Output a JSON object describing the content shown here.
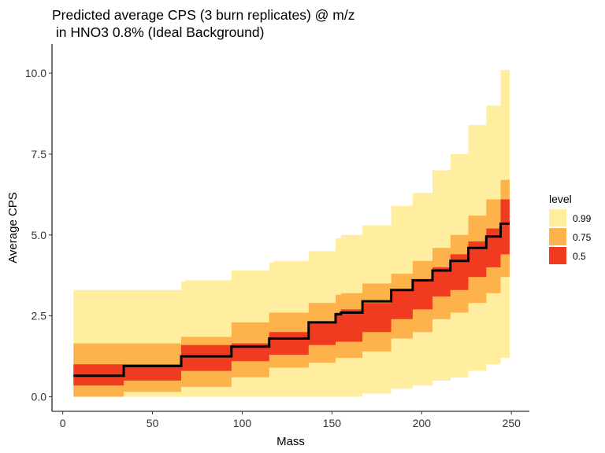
{
  "chart_data": {
    "type": "area",
    "title": "Predicted average CPS (3 burn replicates) @ m/z\n in HNO3 0.8% (Ideal Background)",
    "xlabel": "Mass",
    "ylabel": "Average CPS",
    "xlim": [
      -6,
      260
    ],
    "ylim": [
      -0.45,
      10.9
    ],
    "x_ticks": [
      0,
      50,
      100,
      150,
      200,
      250
    ],
    "x_tick_labels": [
      "0",
      "50",
      "100",
      "150",
      "200",
      "250"
    ],
    "y_ticks": [
      0,
      2.5,
      5,
      7.5,
      10
    ],
    "y_tick_labels": [
      "0.0",
      "2.5",
      "5.0",
      "7.5",
      "10.0"
    ],
    "grid": false,
    "legend": {
      "title": "level",
      "position": "right",
      "entries": [
        {
          "label": "0.99",
          "color": "#FFEDA0"
        },
        {
          "label": "0.75",
          "color": "#FEB24C"
        },
        {
          "label": "0.5",
          "color": "#F03B20"
        }
      ]
    },
    "mass": [
      6,
      34,
      66,
      68,
      94,
      115,
      118,
      137,
      152,
      155,
      167,
      183,
      195,
      206,
      216,
      226,
      236,
      244,
      249
    ],
    "series": [
      {
        "name": "0.99",
        "color": "#FFEDA0",
        "lower": [
          0,
          0,
          0,
          0,
          0,
          0,
          0,
          0,
          0,
          0,
          0.1,
          0.25,
          0.35,
          0.5,
          0.6,
          0.8,
          1.0,
          1.2,
          1.2
        ],
        "upper": [
          3.3,
          3.3,
          3.55,
          3.6,
          3.9,
          4.15,
          4.2,
          4.5,
          4.9,
          5.0,
          5.3,
          5.9,
          6.3,
          7.0,
          7.5,
          8.4,
          9.0,
          10.1,
          10.1
        ]
      },
      {
        "name": "0.75",
        "color": "#FEB24C",
        "lower": [
          0,
          0.15,
          0.3,
          0.3,
          0.6,
          0.9,
          0.9,
          1.05,
          1.2,
          1.2,
          1.4,
          1.8,
          2.0,
          2.4,
          2.6,
          2.9,
          3.2,
          3.7,
          3.7
        ],
        "upper": [
          1.65,
          1.65,
          1.85,
          1.85,
          2.3,
          2.6,
          2.6,
          2.9,
          3.15,
          3.2,
          3.5,
          3.8,
          4.2,
          4.6,
          5.0,
          5.6,
          6.1,
          6.7,
          6.7
        ]
      },
      {
        "name": "0.5",
        "color": "#F03B20",
        "lower": [
          0.35,
          0.5,
          0.8,
          0.8,
          1.1,
          1.3,
          1.3,
          1.6,
          1.7,
          1.7,
          2.0,
          2.4,
          2.7,
          3.1,
          3.3,
          3.7,
          4.0,
          4.4,
          4.4
        ],
        "upper": [
          1.0,
          1.0,
          1.6,
          1.6,
          1.65,
          2.0,
          2.0,
          2.3,
          2.6,
          2.7,
          2.9,
          3.3,
          3.6,
          4.0,
          4.4,
          4.8,
          5.2,
          6.1,
          6.1
        ]
      }
    ],
    "median": {
      "color": "#000000",
      "values": [
        0.65,
        0.95,
        1.25,
        1.25,
        1.55,
        1.8,
        1.8,
        2.3,
        2.55,
        2.6,
        2.95,
        3.3,
        3.6,
        3.9,
        4.2,
        4.6,
        4.95,
        5.35,
        5.35
      ]
    }
  }
}
